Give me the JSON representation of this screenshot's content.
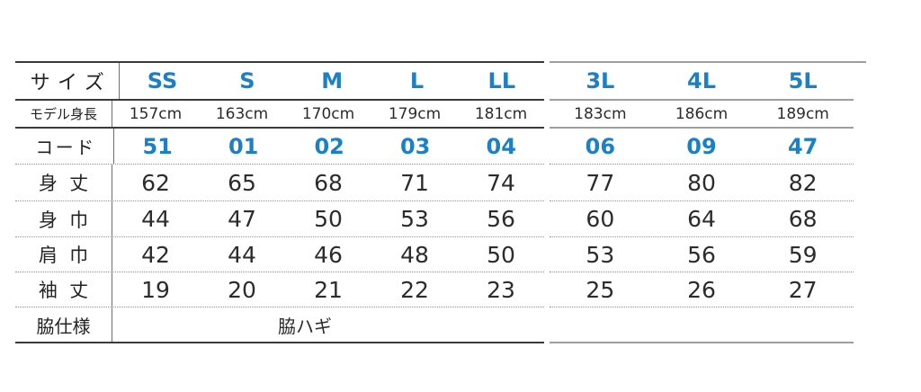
{
  "chart_data": {
    "type": "table",
    "title": "size-spec-table",
    "header": {
      "label": "サイズ",
      "sizes": [
        "SS",
        "S",
        "M",
        "L",
        "LL",
        "3L",
        "4L",
        "5L"
      ]
    },
    "rows": {
      "model_height": {
        "label": "モデル身長",
        "values": [
          "157cm",
          "163cm",
          "170cm",
          "179cm",
          "181cm",
          "183cm",
          "186cm",
          "189cm"
        ]
      },
      "code": {
        "label": "コード",
        "values": [
          "51",
          "01",
          "02",
          "03",
          "04",
          "06",
          "09",
          "47"
        ]
      },
      "body_length": {
        "label": "身  丈",
        "values": [
          "62",
          "65",
          "68",
          "71",
          "74",
          "77",
          "80",
          "82"
        ]
      },
      "body_width": {
        "label": "身  巾",
        "values": [
          "44",
          "47",
          "50",
          "53",
          "56",
          "60",
          "64",
          "68"
        ]
      },
      "shoulder_width": {
        "label": "肩  巾",
        "values": [
          "42",
          "44",
          "46",
          "48",
          "50",
          "53",
          "56",
          "59"
        ]
      },
      "sleeve_length": {
        "label": "袖  丈",
        "values": [
          "19",
          "20",
          "21",
          "22",
          "23",
          "25",
          "26",
          "27"
        ]
      },
      "side_spec": {
        "label": "脇仕様",
        "value": "脇ハギ"
      }
    },
    "layout": {
      "sections": [
        "SS-LL",
        "3L-5L"
      ],
      "grid": "dotted-row-separators",
      "legend": "none"
    },
    "colors": {
      "accent_blue": "#1b80c5",
      "text_dark": "#2c2c2c",
      "line_dark": "#3a3a3a",
      "line_gray": "#9e9e9e",
      "dotted_gray": "#8f8f8f"
    }
  }
}
